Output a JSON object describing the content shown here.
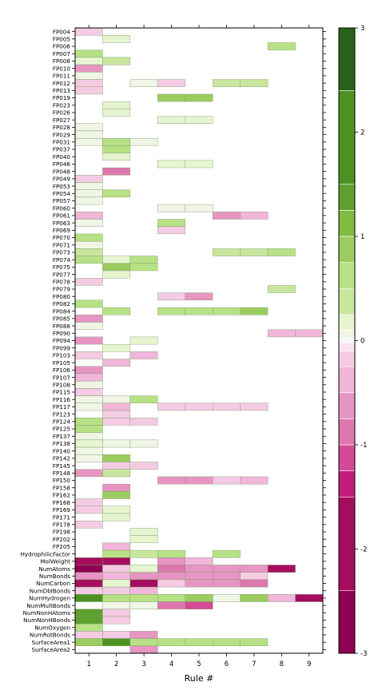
{
  "chart_data": {
    "type": "heatmap",
    "title": "",
    "xlabel": "Rule #",
    "ylabel": "",
    "x_categories": [
      "1",
      "2",
      "3",
      "4",
      "5",
      "6",
      "7",
      "8",
      "9"
    ],
    "y_categories": [
      "FP004",
      "FP005",
      "FP006",
      "FP007",
      "FP008",
      "FP010",
      "FP011",
      "FP012",
      "FP013",
      "FP019",
      "FP023",
      "FP026",
      "FP027",
      "FP028",
      "FP029",
      "FP031",
      "FP037",
      "FP040",
      "FP046",
      "FP048",
      "FP049",
      "FP053",
      "FP054",
      "FP057",
      "FP060",
      "FP061",
      "FP063",
      "FP069",
      "FP070",
      "FP071",
      "FP073",
      "FP074",
      "FP075",
      "FP077",
      "FP078",
      "FP079",
      "FP080",
      "FP082",
      "FP084",
      "FP085",
      "FP088",
      "FP090",
      "FP094",
      "FP099",
      "FP103",
      "FP105",
      "FP106",
      "FP107",
      "FP108",
      "FP115",
      "FP116",
      "FP117",
      "FP123",
      "FP124",
      "FP125",
      "FP137",
      "FP138",
      "FP140",
      "FP142",
      "FP145",
      "FP148",
      "FP150",
      "FP158",
      "FP162",
      "FP168",
      "FP169",
      "FP171",
      "FP178",
      "FP198",
      "FP202",
      "FP205",
      "HydrophilicFactor",
      "MolWeight",
      "NumAtoms",
      "NumBonds",
      "NumCarbon",
      "NumDblBonds",
      "NumHydrogen",
      "NumMultBonds",
      "NumNonHAtoms",
      "NumNonHBonds",
      "NumOxygen",
      "NumRotBonds",
      "SurfaceArea1",
      "SurfaceArea2"
    ],
    "colorbar": {
      "range": [
        -3,
        3
      ],
      "ticks": [
        "-3",
        "-2",
        "-1",
        "0",
        "1",
        "2",
        "3"
      ],
      "breaks": [
        -3,
        -2.4,
        -1.5,
        -1.25,
        -1,
        -0.75,
        -0.5,
        -0.25,
        -0.1,
        -0.02,
        0.02,
        0.1,
        0.25,
        0.5,
        0.75,
        1,
        1.25,
        1.5,
        2.4,
        3
      ],
      "colors": [
        "#8e0152",
        "#a50e5e",
        "#c51b7d",
        "#d44a97",
        "#de77ae",
        "#e795c2",
        "#f1b6da",
        "#f5cbe4",
        "#fbe3ef",
        "#f7f7f7",
        "#f0f5e6",
        "#e6f5d0",
        "#c9e69e",
        "#b8e186",
        "#9ccc5f",
        "#7fbc41",
        "#5ea02e",
        "#4d9221",
        "#276419"
      ]
    },
    "cells": [
      [
        0,
        0,
        -0.2
      ],
      [
        1,
        1,
        0.2
      ],
      [
        7,
        2,
        0.6
      ],
      [
        0,
        3,
        0.7
      ],
      [
        0,
        4,
        0.2
      ],
      [
        1,
        4,
        0.4
      ],
      [
        0,
        5,
        -0.6
      ],
      [
        0,
        6,
        0.1
      ],
      [
        0,
        7,
        -0.2
      ],
      [
        2,
        7,
        0.1
      ],
      [
        3,
        7,
        -0.15
      ],
      [
        5,
        7,
        0.4
      ],
      [
        6,
        7,
        0.4
      ],
      [
        0,
        8,
        -0.15
      ],
      [
        3,
        9,
        0.8
      ],
      [
        4,
        9,
        0.8
      ],
      [
        1,
        10,
        0.15
      ],
      [
        1,
        11,
        0.15
      ],
      [
        3,
        12,
        0.2
      ],
      [
        4,
        12,
        0.2
      ],
      [
        0,
        13,
        0.1
      ],
      [
        0,
        14,
        0.1
      ],
      [
        0,
        15,
        0.1
      ],
      [
        1,
        15,
        0.7
      ],
      [
        2,
        15,
        0.1
      ],
      [
        1,
        16,
        0.6
      ],
      [
        1,
        17,
        0.2
      ],
      [
        3,
        18,
        0.2
      ],
      [
        4,
        18,
        0.2
      ],
      [
        1,
        19,
        -0.8
      ],
      [
        0,
        20,
        -0.15
      ],
      [
        0,
        21,
        0.1
      ],
      [
        0,
        22,
        0.1
      ],
      [
        1,
        22,
        0.7
      ],
      [
        0,
        23,
        0.1
      ],
      [
        3,
        24,
        0.1
      ],
      [
        4,
        24,
        0.1
      ],
      [
        0,
        25,
        -0.4
      ],
      [
        5,
        25,
        -0.6
      ],
      [
        6,
        25,
        -0.4
      ],
      [
        0,
        26,
        0.1
      ],
      [
        3,
        26,
        0.7
      ],
      [
        3,
        27,
        -0.2
      ],
      [
        0,
        28,
        0.7
      ],
      [
        0,
        29,
        0.1
      ],
      [
        0,
        30,
        0.4
      ],
      [
        5,
        30,
        0.4
      ],
      [
        6,
        30,
        0.4
      ],
      [
        7,
        30,
        0.6
      ],
      [
        0,
        31,
        0.6
      ],
      [
        1,
        31,
        0.2
      ],
      [
        2,
        31,
        0.7
      ],
      [
        1,
        32,
        0.8
      ],
      [
        2,
        32,
        0.7
      ],
      [
        1,
        33,
        0.2
      ],
      [
        0,
        34,
        -0.15
      ],
      [
        7,
        35,
        0.5
      ],
      [
        3,
        36,
        -0.15
      ],
      [
        4,
        36,
        -0.5
      ],
      [
        0,
        37,
        0.7
      ],
      [
        1,
        38,
        0.6
      ],
      [
        3,
        38,
        0.6
      ],
      [
        4,
        38,
        0.6
      ],
      [
        5,
        38,
        0.6
      ],
      [
        6,
        38,
        0.8
      ],
      [
        0,
        39,
        -0.5
      ],
      [
        0,
        40,
        0.1
      ],
      [
        7,
        41,
        -0.3
      ],
      [
        8,
        41,
        -0.3
      ],
      [
        0,
        42,
        -0.7
      ],
      [
        2,
        42,
        0.2
      ],
      [
        1,
        43,
        0.2
      ],
      [
        0,
        44,
        -0.1
      ],
      [
        2,
        44,
        -0.4
      ],
      [
        1,
        45,
        -0.4
      ],
      [
        0,
        46,
        -0.5
      ],
      [
        0,
        47,
        -0.4
      ],
      [
        0,
        48,
        0.1
      ],
      [
        0,
        49,
        -0.15
      ],
      [
        0,
        50,
        0.1
      ],
      [
        1,
        50,
        0.1
      ],
      [
        2,
        50,
        0.7
      ],
      [
        0,
        51,
        0.1
      ],
      [
        1,
        51,
        -0.4
      ],
      [
        3,
        51,
        -0.15
      ],
      [
        4,
        51,
        -0.15
      ],
      [
        5,
        51,
        -0.15
      ],
      [
        6,
        51,
        -0.15
      ],
      [
        1,
        52,
        -0.15
      ],
      [
        0,
        53,
        0.6
      ],
      [
        1,
        53,
        -0.2
      ],
      [
        2,
        53,
        -0.15
      ],
      [
        0,
        54,
        0.6
      ],
      [
        0,
        55,
        0.1
      ],
      [
        0,
        56,
        0.2
      ],
      [
        1,
        56,
        0.1
      ],
      [
        2,
        56,
        0.1
      ],
      [
        0,
        57,
        0.1
      ],
      [
        0,
        58,
        0.1
      ],
      [
        1,
        58,
        0.8
      ],
      [
        1,
        59,
        -0.1
      ],
      [
        2,
        59,
        -0.1
      ],
      [
        0,
        60,
        -0.5
      ],
      [
        1,
        60,
        0.3
      ],
      [
        3,
        61,
        -0.5
      ],
      [
        4,
        61,
        -0.5
      ],
      [
        5,
        61,
        -0.15
      ],
      [
        6,
        61,
        -0.4
      ],
      [
        1,
        62,
        -0.5
      ],
      [
        1,
        63,
        0.8
      ],
      [
        0,
        64,
        -0.15
      ],
      [
        0,
        65,
        -0.2
      ],
      [
        1,
        65,
        0.2
      ],
      [
        1,
        66,
        0.15
      ],
      [
        0,
        67,
        -0.15
      ],
      [
        2,
        68,
        0.15
      ],
      [
        2,
        69,
        0.15
      ],
      [
        1,
        70,
        -0.4
      ],
      [
        1,
        71,
        0.7
      ],
      [
        2,
        71,
        0.3
      ],
      [
        3,
        71,
        0.7
      ],
      [
        5,
        71,
        0.7
      ],
      [
        0,
        72,
        -2.3
      ],
      [
        1,
        72,
        -2.2
      ],
      [
        3,
        72,
        -0.6
      ],
      [
        4,
        72,
        -0.4
      ],
      [
        0,
        73,
        -2.6
      ],
      [
        1,
        73,
        -0.1
      ],
      [
        2,
        73,
        0.15
      ],
      [
        3,
        73,
        -0.8
      ],
      [
        4,
        73,
        -0.7
      ],
      [
        5,
        73,
        -0.7
      ],
      [
        6,
        73,
        -0.7
      ],
      [
        7,
        73,
        -2.2
      ],
      [
        0,
        74,
        -0.5
      ],
      [
        1,
        74,
        -0.4
      ],
      [
        2,
        74,
        -0.5
      ],
      [
        3,
        74,
        -0.7
      ],
      [
        4,
        74,
        -0.5
      ],
      [
        5,
        74,
        -0.7
      ],
      [
        6,
        74,
        -0.15
      ],
      [
        0,
        75,
        -2.0
      ],
      [
        1,
        75,
        0.2
      ],
      [
        2,
        75,
        -2.0
      ],
      [
        3,
        75,
        -0.15
      ],
      [
        4,
        75,
        -0.5
      ],
      [
        5,
        75,
        -0.5
      ],
      [
        6,
        75,
        -0.8
      ],
      [
        0,
        76,
        -0.15
      ],
      [
        1,
        76,
        -0.1
      ],
      [
        2,
        76,
        -0.4
      ],
      [
        0,
        77,
        2.2
      ],
      [
        1,
        77,
        0.7
      ],
      [
        2,
        77,
        0.7
      ],
      [
        3,
        77,
        0.6
      ],
      [
        4,
        77,
        0.8
      ],
      [
        5,
        77,
        0.1
      ],
      [
        6,
        77,
        0.8
      ],
      [
        7,
        77,
        -0.4
      ],
      [
        8,
        77,
        -2.2
      ],
      [
        1,
        78,
        0.1
      ],
      [
        2,
        78,
        0.1
      ],
      [
        3,
        78,
        -0.9
      ],
      [
        4,
        78,
        -1.0
      ],
      [
        0,
        79,
        1.3
      ],
      [
        1,
        79,
        -0.1
      ],
      [
        0,
        80,
        1.3
      ],
      [
        1,
        80,
        -0.1
      ],
      [
        0,
        81,
        0.7
      ],
      [
        0,
        82,
        -0.1
      ],
      [
        1,
        82,
        -0.2
      ],
      [
        2,
        82,
        -0.5
      ],
      [
        0,
        83,
        0.8
      ],
      [
        1,
        83,
        1.9
      ],
      [
        2,
        83,
        0.6
      ],
      [
        3,
        83,
        0.7
      ],
      [
        4,
        83,
        0.7
      ],
      [
        5,
        83,
        0.7
      ],
      [
        6,
        83,
        0.7
      ],
      [
        2,
        84,
        -0.5
      ]
    ]
  }
}
